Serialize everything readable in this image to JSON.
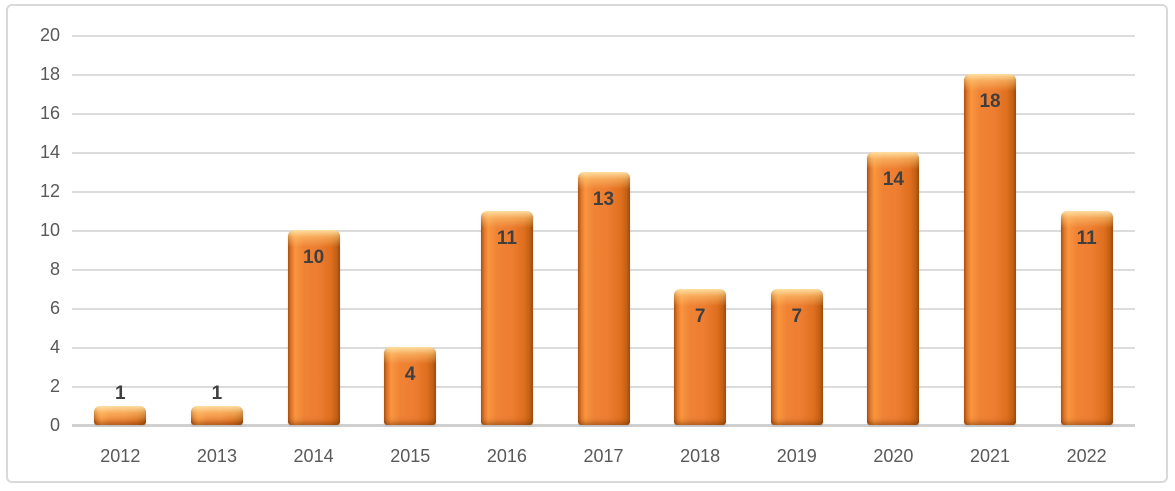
{
  "chart_data": {
    "type": "bar",
    "title": "",
    "xlabel": "",
    "ylabel": "",
    "categories": [
      "2012",
      "2013",
      "2014",
      "2015",
      "2016",
      "2017",
      "2018",
      "2019",
      "2020",
      "2021",
      "2022"
    ],
    "values": [
      1,
      1,
      10,
      4,
      11,
      13,
      7,
      7,
      14,
      18,
      11
    ],
    "ylim": [
      0,
      20
    ],
    "ytick_step": 2,
    "ytick_labels": [
      "0",
      "2",
      "4",
      "6",
      "8",
      "10",
      "12",
      "14",
      "16",
      "18",
      "20"
    ],
    "grid": true,
    "legend": false,
    "data_labels": true,
    "data_label_position": "inside-end",
    "colors": {
      "bar_main": "#ED7D31",
      "bar_gloss": "#FFE3AE",
      "bar_edge_dark": "#BC5E13",
      "gridline": "#DCDCDC",
      "axis_line": "#D0D0D0",
      "tick_label": "#595959",
      "data_label": "#3F3F3F",
      "frame_border": "#D9D9D9",
      "background": "#FFFFFF"
    }
  }
}
